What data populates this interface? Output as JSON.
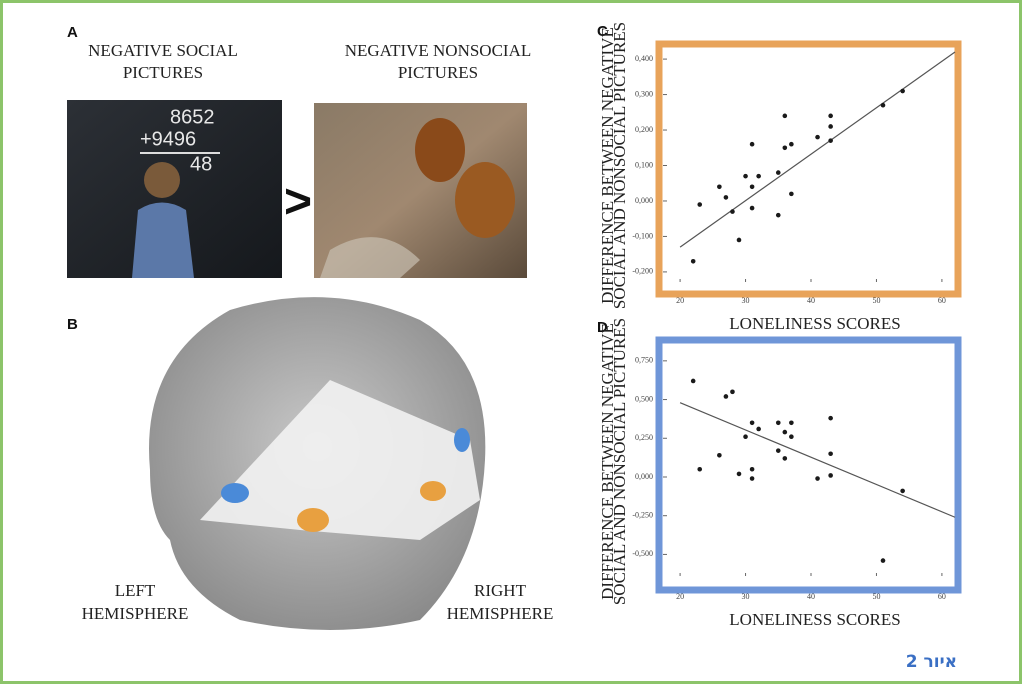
{
  "panel_a": {
    "label": "A",
    "left_caption": [
      "NEGATIVE SOCIAL",
      "PICTURES"
    ],
    "right_caption": [
      "NEGATIVE NONSOCIAL",
      "PICTURES"
    ],
    "comparator": ">",
    "chalkboard": [
      "8652",
      "+9496",
      "48"
    ]
  },
  "panel_b": {
    "label": "B",
    "left_caption": [
      "LEFT",
      "HEMISPHERE"
    ],
    "right_caption": [
      "RIGHT",
      "HEMISPHERE"
    ]
  },
  "chart_data": [
    {
      "type": "scatter",
      "label": "C",
      "xlabel": "LONELINESS SCORES",
      "ylabel": [
        "DIFFERENCE BETWEEN NEGATIVE",
        "SOCIAL AND NONSOCIAL PICTURES"
      ],
      "x": [
        22,
        23,
        26,
        27,
        28,
        29,
        30,
        31,
        31,
        31,
        32,
        35,
        35,
        36,
        36,
        37,
        37,
        41,
        43,
        43,
        43,
        51,
        54
      ],
      "y": [
        -0.17,
        -0.01,
        0.04,
        0.01,
        -0.03,
        -0.11,
        0.07,
        0.16,
        -0.02,
        0.04,
        0.07,
        0.08,
        -0.04,
        0.24,
        0.15,
        0.16,
        0.02,
        0.18,
        0.24,
        0.21,
        0.17,
        0.27,
        0.31
      ],
      "trend": {
        "x": [
          20,
          62
        ],
        "y": [
          -0.13,
          0.42
        ]
      },
      "xlim": [
        18,
        62
      ],
      "ylim": [
        -0.22,
        0.42
      ],
      "xticks": [
        20,
        30,
        40,
        50,
        60
      ],
      "yticks": [
        {
          "value": 0.4,
          "label": "0,400"
        },
        {
          "value": 0.3,
          "label": "0,300"
        },
        {
          "value": 0.2,
          "label": "0,200"
        },
        {
          "value": 0.1,
          "label": "0,100"
        },
        {
          "value": 0,
          "label": "0,000"
        },
        {
          "value": -0.1,
          "label": "-0,100"
        },
        {
          "value": -0.2,
          "label": "-0,200"
        }
      ],
      "color": "#1a1a1a",
      "frame_color": "#e8a35a"
    },
    {
      "type": "scatter",
      "label": "D",
      "xlabel": "LONELINESS SCORES",
      "ylabel": [
        "DIFFERENCE BETWEEN NEGATIVE",
        "SOCIAL AND NONSOCIAL PICTURES"
      ],
      "x": [
        22,
        23,
        26,
        27,
        28,
        29,
        30,
        31,
        31,
        31,
        32,
        35,
        35,
        36,
        36,
        37,
        37,
        41,
        43,
        43,
        43,
        51,
        54
      ],
      "y": [
        0.62,
        0.05,
        0.14,
        0.52,
        0.55,
        0.02,
        0.26,
        0.35,
        0.05,
        -0.01,
        0.31,
        0.35,
        0.17,
        0.29,
        0.12,
        0.35,
        0.26,
        -0.01,
        0.38,
        0.15,
        0.01,
        -0.54,
        -0.09
      ],
      "trend": {
        "x": [
          20,
          62
        ],
        "y": [
          0.48,
          -0.26
        ]
      },
      "xlim": [
        18,
        62
      ],
      "ylim": [
        -0.62,
        0.82
      ],
      "xticks": [
        20,
        30,
        40,
        50,
        60
      ],
      "yticks": [
        {
          "value": 0.75,
          "label": "0,750"
        },
        {
          "value": 0.5,
          "label": "0,500"
        },
        {
          "value": 0.25,
          "label": "0,250"
        },
        {
          "value": 0,
          "label": "0,000"
        },
        {
          "value": -0.25,
          "label": "-0,250"
        },
        {
          "value": -0.5,
          "label": "-0,500"
        }
      ],
      "color": "#1a1a1a",
      "frame_color": "#6f96d8"
    }
  ],
  "caption": "איור 2"
}
